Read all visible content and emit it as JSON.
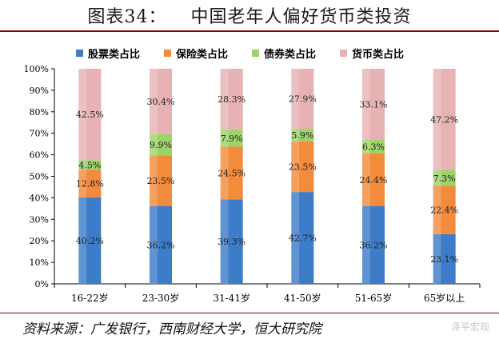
{
  "header": {
    "figure_label": "图表34：",
    "title": "中国老年人偏好货币类投资"
  },
  "source_note": "资料来源：广发银行，西南财经大学，恒大研究院",
  "watermark": "泽平宏观",
  "chart_data": {
    "type": "bar",
    "stacked": true,
    "categories": [
      "16-22岁",
      "23-30岁",
      "31-41岁",
      "41-50岁",
      "51-65岁",
      "65岁以上"
    ],
    "series": [
      {
        "name": "股票类占比",
        "values": [
          40.2,
          36.2,
          39.3,
          42.7,
          36.2,
          23.1
        ],
        "labels": [
          "40.2%",
          "36.2%",
          "39.3%",
          "42.7%",
          "36.2%",
          "23.1%"
        ],
        "color": "#3d7cc9"
      },
      {
        "name": "保险类占比",
        "values": [
          12.8,
          23.5,
          24.5,
          23.5,
          24.4,
          22.4
        ],
        "labels": [
          "12.8%",
          "23.5%",
          "24.5%",
          "23.5%",
          "24.4%",
          "22.4%"
        ],
        "color": "#f28b3c"
      },
      {
        "name": "债券类占比",
        "values": [
          4.5,
          9.9,
          7.9,
          5.9,
          6.3,
          7.3
        ],
        "labels": [
          "4.5%",
          "9.9%",
          "7.9%",
          "5.9%",
          "6.3%",
          "7.3%"
        ],
        "color": "#9ed36a"
      },
      {
        "name": "货币类占比",
        "values": [
          42.5,
          30.4,
          28.3,
          27.9,
          33.1,
          47.2
        ],
        "labels": [
          "42.5%",
          "30.4%",
          "28.3%",
          "27.9%",
          "33.1%",
          "47.2%"
        ],
        "color": "#e7b2b4"
      }
    ],
    "yticks": [
      "0%",
      "10%",
      "20%",
      "30%",
      "40%",
      "50%",
      "60%",
      "70%",
      "80%",
      "90%",
      "100%"
    ],
    "ylim": [
      0,
      100
    ],
    "legend_position": "top",
    "grid": false
  }
}
